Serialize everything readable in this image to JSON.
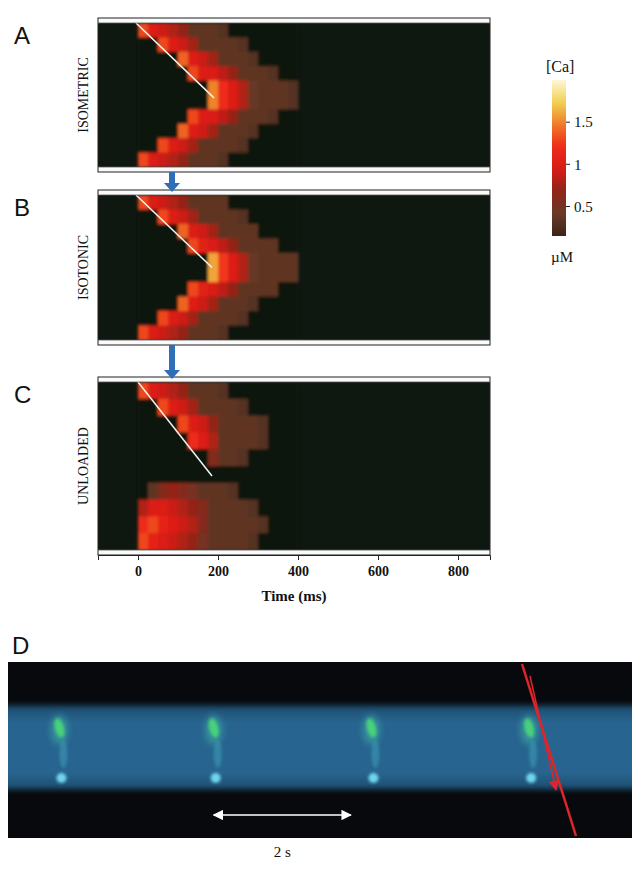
{
  "chart_data": [
    {
      "type": "heatmap",
      "label": "A",
      "ylabel": "ISOMETRIC",
      "tick_labels": false,
      "xlim": [
        -100,
        880
      ],
      "ylim": [
        0,
        10
      ],
      "x_bins": [
        0,
        25,
        50,
        75,
        100,
        125,
        150,
        175,
        200,
        225,
        250,
        275,
        300,
        325,
        350,
        375,
        400
      ],
      "cells": [
        [
          1.3,
          1.0,
          0.9,
          0.8,
          0.7,
          0.35,
          0.35,
          0.35,
          0.3,
          0,
          0,
          0,
          0,
          0,
          0,
          0
        ],
        [
          0,
          0,
          1.3,
          1.0,
          0.9,
          0.75,
          0.35,
          0.35,
          0.35,
          0.35,
          0.3,
          0,
          0,
          0,
          0,
          0
        ],
        [
          0,
          0,
          0,
          0,
          1.4,
          1.0,
          0.9,
          0.75,
          0.35,
          0.35,
          0.35,
          0.3,
          0,
          0,
          0,
          0
        ],
        [
          0,
          0,
          0,
          0,
          0,
          1.3,
          1.0,
          0.95,
          0.85,
          0.7,
          0.35,
          0.35,
          0.35,
          0.3,
          0,
          0
        ],
        [
          0,
          0,
          0,
          0,
          0,
          0,
          0,
          1.5,
          1.2,
          1.0,
          0.8,
          0.4,
          0.35,
          0.35,
          0.35,
          0.3
        ],
        [
          0,
          0,
          0,
          0,
          0,
          0,
          0,
          1.5,
          1.2,
          1.0,
          0.8,
          0.4,
          0.35,
          0.35,
          0.35,
          0.3
        ],
        [
          0,
          0,
          0,
          0,
          0,
          1.3,
          1.0,
          0.95,
          0.85,
          0.7,
          0.35,
          0.35,
          0.35,
          0.3,
          0,
          0
        ],
        [
          0,
          0,
          0,
          0,
          1.4,
          1.0,
          0.9,
          0.75,
          0.35,
          0.35,
          0.35,
          0.3,
          0,
          0,
          0,
          0
        ],
        [
          0,
          0,
          1.3,
          1.0,
          0.9,
          0.75,
          0.35,
          0.35,
          0.35,
          0.35,
          0.3,
          0,
          0,
          0,
          0,
          0
        ],
        [
          1.3,
          1.0,
          0.9,
          0.8,
          0.7,
          0.35,
          0.35,
          0.35,
          0.3,
          0,
          0,
          0,
          0,
          0,
          0,
          0
        ]
      ],
      "front_line": {
        "x": [
          -5,
          190
        ],
        "y": [
          0,
          5.2
        ]
      },
      "color_range": [
        0.15,
        2.0
      ],
      "color_ticks": [
        0.5,
        1,
        1.5
      ],
      "color_title": "[Ca]",
      "color_unit": "µM"
    },
    {
      "type": "heatmap",
      "label": "B",
      "ylabel": "ISOTONIC",
      "tick_labels": false,
      "xlim": [
        -100,
        880
      ],
      "ylim": [
        0,
        10
      ],
      "x_bins": [
        0,
        25,
        50,
        75,
        100,
        125,
        150,
        175,
        200,
        225,
        250,
        275,
        300,
        325,
        350,
        375,
        400
      ],
      "cells": [
        [
          1.3,
          1.0,
          0.9,
          0.8,
          0.7,
          0.35,
          0.35,
          0.35,
          0.35,
          0,
          0,
          0,
          0,
          0,
          0,
          0
        ],
        [
          0,
          0,
          1.3,
          1.0,
          0.9,
          0.75,
          0.35,
          0.35,
          0.35,
          0.35,
          0.3,
          0,
          0,
          0,
          0,
          0
        ],
        [
          0,
          0,
          0,
          0,
          1.4,
          1.0,
          0.9,
          0.75,
          0.35,
          0.35,
          0.35,
          0.35,
          0,
          0,
          0,
          0
        ],
        [
          0,
          0,
          0,
          0,
          0,
          1.3,
          1.05,
          0.95,
          0.85,
          0.7,
          0.35,
          0.35,
          0.35,
          0.35,
          0,
          0
        ],
        [
          0,
          0,
          0,
          0,
          0,
          0,
          0,
          1.6,
          1.25,
          1.0,
          0.8,
          0.4,
          0.35,
          0.35,
          0.35,
          0.35
        ],
        [
          0,
          0,
          0,
          0,
          0,
          0,
          0,
          1.6,
          1.25,
          1.0,
          0.8,
          0.4,
          0.35,
          0.35,
          0.35,
          0.35
        ],
        [
          0,
          0,
          0,
          0,
          0,
          1.3,
          1.05,
          0.95,
          0.85,
          0.7,
          0.35,
          0.35,
          0.35,
          0.35,
          0,
          0
        ],
        [
          0,
          0,
          0,
          0,
          1.4,
          1.0,
          0.9,
          0.75,
          0.35,
          0.35,
          0.35,
          0.3,
          0,
          0,
          0,
          0
        ],
        [
          0,
          0,
          1.3,
          1.0,
          0.9,
          0.75,
          0.35,
          0.35,
          0.35,
          0.35,
          0.3,
          0,
          0,
          0,
          0,
          0
        ],
        [
          1.3,
          1.0,
          0.9,
          0.8,
          0.7,
          0.35,
          0.35,
          0.35,
          0.3,
          0,
          0,
          0,
          0,
          0,
          0,
          0
        ]
      ],
      "front_line": {
        "x": [
          -5,
          185
        ],
        "y": [
          0,
          5.0
        ]
      }
    },
    {
      "type": "heatmap",
      "label": "C",
      "ylabel": "UNLOADED",
      "tick_labels": "x",
      "xlim": [
        -100,
        880
      ],
      "ylim": [
        0,
        10
      ],
      "xticks": [
        0,
        200,
        400,
        600,
        800
      ],
      "xlabel": "Time (ms)",
      "x_bins": [
        0,
        25,
        50,
        75,
        100,
        125,
        150,
        175,
        200,
        225,
        250,
        275,
        300,
        325,
        350,
        375,
        400
      ],
      "cells": [
        [
          1.3,
          1.0,
          0.9,
          0.8,
          0.7,
          0.35,
          0.35,
          0.35,
          0.3,
          0,
          0,
          0,
          0,
          0,
          0,
          0
        ],
        [
          0,
          0,
          1.3,
          1.0,
          0.9,
          0.75,
          0.35,
          0.35,
          0.35,
          0.35,
          0.3,
          0,
          0,
          0,
          0,
          0
        ],
        [
          0,
          0,
          0,
          0,
          1.3,
          1.0,
          0.9,
          0.7,
          0.35,
          0.35,
          0.35,
          0.35,
          0.3,
          0,
          0,
          0
        ],
        [
          0,
          0,
          0,
          0,
          0,
          1.2,
          1.0,
          0.8,
          0.35,
          0.35,
          0.35,
          0.35,
          0.3,
          0,
          0,
          0
        ],
        [
          0,
          0,
          0,
          0,
          0,
          0,
          0,
          0.6,
          0.35,
          0.35,
          0.3,
          0,
          0,
          0,
          0,
          0
        ],
        [
          0,
          0,
          0,
          0,
          0,
          0,
          0,
          0,
          0,
          0,
          0,
          0,
          0,
          0,
          0,
          0
        ],
        [
          0,
          0.35,
          0.6,
          0.7,
          0.6,
          0.5,
          0.35,
          0.35,
          0.35,
          0.3,
          0,
          0,
          0,
          0,
          0,
          0
        ],
        [
          0.8,
          1.0,
          1.0,
          0.9,
          0.8,
          0.7,
          0.6,
          0.35,
          0.35,
          0.35,
          0.35,
          0.3,
          0,
          0,
          0,
          0
        ],
        [
          1.2,
          1.3,
          1.1,
          1.0,
          0.9,
          0.8,
          0.6,
          0.35,
          0.35,
          0.35,
          0.35,
          0.35,
          0.3,
          0,
          0,
          0
        ],
        [
          1.3,
          1.1,
          1.0,
          0.9,
          0.8,
          0.7,
          0.5,
          0.35,
          0.35,
          0.35,
          0.35,
          0.3,
          0,
          0,
          0,
          0
        ]
      ],
      "front_line": {
        "x": [
          0,
          185
        ],
        "y": [
          0,
          5.6
        ]
      }
    },
    {
      "type": "image",
      "label": "D",
      "tick_labels": false,
      "xlim": [
        0,
        9.1
      ],
      "events": [
        0.75,
        3.0,
        5.3,
        7.6
      ],
      "scale_bar": {
        "start": 3.0,
        "value": 2,
        "label": "2 s"
      }
    }
  ]
}
